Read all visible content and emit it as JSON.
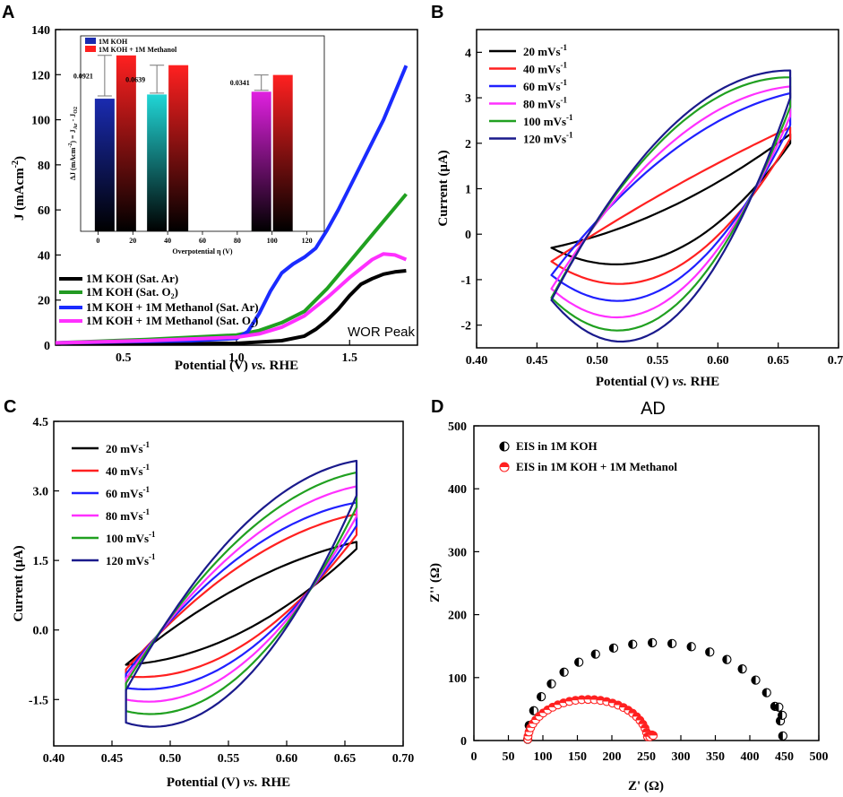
{
  "colors": {
    "black": "#000000",
    "red": "#ff2020",
    "blue": "#2020ff",
    "magenta": "#ff30ff",
    "green": "#20a020",
    "navy": "#1a1a8c",
    "ar_blue": "#1a2bff",
    "o2_green": "#239a23",
    "inset_blue": "#1a2bb0",
    "inset_red": "#ff2020",
    "inset_cyan": "#20d6d6",
    "inset_magenta": "#e020e0"
  },
  "chart_data": [
    {
      "panel": "A",
      "type": "line",
      "xlabel": "Potential (V) vs. RHE",
      "ylabel": "J (mAcm-2)",
      "xlim": [
        0.2,
        1.8
      ],
      "ylim": [
        0,
        140
      ],
      "xticks": [
        0.5,
        1.0,
        1.5
      ],
      "yticks": [
        0,
        20,
        40,
        60,
        80,
        100,
        120,
        140
      ],
      "annotation": "WOR Peak",
      "series": [
        {
          "name": "1M KOH (Sat. Ar)",
          "color": "black",
          "x": [
            0.2,
            0.6,
            1.0,
            1.2,
            1.3,
            1.35,
            1.4,
            1.45,
            1.5,
            1.55,
            1.6,
            1.65,
            1.7,
            1.75
          ],
          "y": [
            0.3,
            0.5,
            0.8,
            2.0,
            4.0,
            7.0,
            11.0,
            16.0,
            22.0,
            27.0,
            29.5,
            31.5,
            32.5,
            33.0
          ]
        },
        {
          "name": "1M KOH (Sat. O2)",
          "color": "green",
          "x": [
            0.2,
            0.6,
            1.0,
            1.1,
            1.2,
            1.3,
            1.4,
            1.5,
            1.6,
            1.7,
            1.75
          ],
          "y": [
            1.0,
            2.5,
            4.5,
            6.5,
            10.0,
            15.0,
            25.0,
            37.0,
            49.0,
            61.0,
            67.0
          ]
        },
        {
          "name": "1M KOH + 1M Methanol (Sat. Ar)",
          "color": "ar_blue",
          "x": [
            0.2,
            0.8,
            1.0,
            1.05,
            1.1,
            1.15,
            1.2,
            1.25,
            1.3,
            1.35,
            1.4,
            1.45,
            1.5,
            1.55,
            1.6,
            1.65,
            1.7,
            1.75
          ],
          "y": [
            1.0,
            2.0,
            3.0,
            6.0,
            14.0,
            24.0,
            32.0,
            36.0,
            39.0,
            43.0,
            51.0,
            60.0,
            70.0,
            80.0,
            90.0,
            100.0,
            112.0,
            124.0
          ]
        },
        {
          "name": "1M KOH + 1M Methanol (Sat. O2)",
          "color": "magenta",
          "x": [
            0.2,
            0.6,
            1.0,
            1.1,
            1.2,
            1.3,
            1.4,
            1.5,
            1.6,
            1.65,
            1.7,
            1.75
          ],
          "y": [
            1.0,
            2.0,
            3.5,
            5.0,
            8.0,
            13.0,
            21.0,
            30.0,
            38.0,
            40.5,
            40.0,
            38.0
          ]
        }
      ],
      "inset": {
        "type": "bar",
        "xlabel": "Overpotential η (V)",
        "ylabel": "ΔJ (mAcm-2) = JAr - JO2",
        "xticks": [
          0,
          20,
          40,
          60,
          80,
          100,
          120
        ],
        "legend": [
          "1M KOH",
          "1M KOH + 1M Methanol"
        ],
        "groups": [
          {
            "x": 10,
            "koh": 95,
            "methanol": 126,
            "error_top": 126,
            "error_bottom": 97,
            "label": "0.0921",
            "koh_color": "inset_blue"
          },
          {
            "x": 40,
            "koh": 98,
            "methanol": 119,
            "error_top": 119,
            "error_bottom": 99,
            "label": "0.0639",
            "koh_color": "inset_cyan"
          },
          {
            "x": 100,
            "koh": 100,
            "methanol": 112,
            "error_top": 112,
            "error_bottom": 101,
            "label": "0.0341",
            "koh_color": "inset_magenta"
          }
        ]
      }
    },
    {
      "panel": "B",
      "type": "line",
      "xlabel": "Potential (V) vs. RHE",
      "ylabel": "Current (μA)",
      "xlim": [
        0.4,
        0.7
      ],
      "ylim": [
        -2.5,
        4.5
      ],
      "xticks": [
        0.4,
        0.45,
        0.5,
        0.55,
        0.6,
        0.65,
        0.7
      ],
      "xtick_labels": [
        "0.40",
        "0.45",
        "0.50",
        "0.55",
        "0.60",
        "0.65",
        "0.70"
      ],
      "yticks": [
        -2,
        -1,
        0,
        1,
        2,
        3,
        4
      ],
      "series": [
        {
          "name": "20 mVs-1",
          "color": "black",
          "upper": [
            -0.3,
            0.6,
            2.2
          ],
          "lower": [
            -0.3,
            -0.4,
            2.0
          ]
        },
        {
          "name": "40 mVs-1",
          "color": "red",
          "upper": [
            -0.6,
            1.0,
            2.35
          ],
          "lower": [
            -0.6,
            -0.8,
            2.1
          ]
        },
        {
          "name": "60 mVs-1",
          "color": "blue",
          "upper": [
            -0.9,
            1.8,
            3.1
          ],
          "lower": [
            -0.9,
            -1.1,
            2.4
          ]
        },
        {
          "name": "80 mVs-1",
          "color": "magenta",
          "upper": [
            -1.2,
            2.0,
            3.25
          ],
          "lower": [
            -1.2,
            -1.4,
            2.6
          ]
        },
        {
          "name": "100 mVs-1",
          "color": "green",
          "upper": [
            -1.4,
            2.25,
            3.45
          ],
          "lower": [
            -1.4,
            -1.65,
            2.8
          ]
        },
        {
          "name": "120 mVs-1",
          "color": "navy",
          "upper": [
            -1.45,
            2.35,
            3.6
          ],
          "lower": [
            -1.45,
            -1.9,
            3.0
          ]
        }
      ]
    },
    {
      "panel": "C",
      "type": "line",
      "xlabel": "Potential (V) vs. RHE",
      "ylabel": "Current (μA)",
      "xlim": [
        0.4,
        0.7
      ],
      "ylim": [
        -2.5,
        4.5
      ],
      "xticks": [
        0.4,
        0.45,
        0.5,
        0.55,
        0.6,
        0.65,
        0.7
      ],
      "xtick_labels": [
        "0.40",
        "0.45",
        "0.50",
        "0.55",
        "0.60",
        "0.65",
        "0.70"
      ],
      "yticks": [
        -1.5,
        0,
        1.5,
        3,
        4.5
      ],
      "ytick_labels": [
        "-1.5",
        "0.0",
        "1.5",
        "3.0",
        "4.5"
      ],
      "series": [
        {
          "name": "20 mVs-1",
          "color": "black",
          "upper": [
            -0.75,
            0.95,
            1.9
          ],
          "lower": [
            -0.75,
            -0.05,
            1.75
          ]
        },
        {
          "name": "40 mVs-1",
          "color": "red",
          "upper": [
            -0.85,
            1.4,
            2.5
          ],
          "lower": [
            -1.0,
            -0.35,
            2.05
          ]
        },
        {
          "name": "60 mVs-1",
          "color": "blue",
          "upper": [
            -0.95,
            1.6,
            2.75
          ],
          "lower": [
            -1.25,
            -0.55,
            2.25
          ]
        },
        {
          "name": "80 mVs-1",
          "color": "magenta",
          "upper": [
            -1.05,
            1.8,
            3.1
          ],
          "lower": [
            -1.5,
            -0.75,
            2.45
          ]
        },
        {
          "name": "100 mVs-1",
          "color": "green",
          "upper": [
            -1.15,
            2.0,
            3.4
          ],
          "lower": [
            -1.75,
            -0.95,
            2.65
          ]
        },
        {
          "name": "120 mVs-1",
          "color": "navy",
          "upper": [
            -1.3,
            2.2,
            3.65
          ],
          "lower": [
            -2.0,
            -1.15,
            2.9
          ]
        }
      ]
    },
    {
      "panel": "D",
      "type": "scatter",
      "title": "AD",
      "xlabel": "Z' (Ω)",
      "ylabel": "Z'' (Ω)",
      "xlim": [
        0,
        500
      ],
      "ylim": [
        0,
        500
      ],
      "xticks": [
        0,
        50,
        100,
        150,
        200,
        250,
        300,
        350,
        400,
        450,
        500
      ],
      "yticks": [
        0,
        100,
        200,
        300,
        400,
        500
      ],
      "series": [
        {
          "name": "EIS in 1M KOH",
          "color": "black",
          "center": 263,
          "radius": 185,
          "count": 21
        },
        {
          "name": "EIS in 1M KOH + 1M Methanol",
          "color": "red",
          "center": 165,
          "radius": 87,
          "count": 30
        }
      ]
    }
  ],
  "panels": {
    "A": {
      "letter": "A",
      "xlabel_main": "Potential (V) ",
      "xlabel_italic": "vs.",
      "xlabel_end": " RHE",
      "ylabel_main": "J (mAcm",
      "ylabel_sup": "-2",
      "ylabel_end": ")",
      "xtick_labels": [
        "0.5",
        "1.0",
        "1.5"
      ],
      "ytick_labels": [
        "0",
        "20",
        "40",
        "60",
        "80",
        "100",
        "120",
        "140"
      ],
      "annotation": "WOR Peak",
      "legend": [
        {
          "text": "1M KOH (Sat. Ar)",
          "sub": ""
        },
        {
          "text": "1M KOH (Sat. O",
          "sub": "2",
          "end": ")"
        },
        {
          "text": "1M KOH + 1M Methanol (Sat. Ar)",
          "sub": ""
        },
        {
          "text": "1M KOH + 1M Methanol (Sat. O",
          "sub": "2",
          "end": ")"
        }
      ],
      "inset": {
        "legend_koh": "1M KOH",
        "legend_meth": "1M KOH + 1M Methanol",
        "xlabel": "Overpotential η (V)",
        "ylabel_main": "ΔJ (mAcm",
        "ylabel_sup": "-2",
        "ylabel_mid": ") = J",
        "ylabel_sub1": "Ar",
        "ylabel_dash": " - J",
        "ylabel_sub2": "O2",
        "xtick_labels": [
          "0",
          "20",
          "40",
          "60",
          "80",
          "100",
          "120"
        ],
        "bar_labels": [
          "0.0921",
          "0.0639",
          "0.0341"
        ]
      }
    },
    "B": {
      "letter": "B",
      "xlabel_main": "Potential (V) ",
      "xlabel_italic": "vs.",
      "xlabel_end": " RHE",
      "ylabel": "Current (μA)",
      "ytick_labels": [
        "-2",
        "-1",
        "0",
        "1",
        "2",
        "3",
        "4"
      ],
      "legend_labels": [
        "20 mVs",
        "40 mVs",
        "60 mVs",
        "80 mVs",
        "100 mVs",
        "120 mVs"
      ],
      "legend_sup": "-1"
    },
    "C": {
      "letter": "C",
      "xlabel_main": "Potential (V) ",
      "xlabel_italic": "vs.",
      "xlabel_end": " RHE",
      "ylabel": "Current (μA)",
      "legend_labels": [
        "20 mVs",
        "40 mVs",
        "60 mVs",
        "80 mVs",
        "100 mVs",
        "120 mVs"
      ],
      "legend_sup": "-1"
    },
    "D": {
      "letter": "D",
      "title": "AD",
      "xlabel": "Z' (Ω)",
      "ylabel": "Z'' (Ω)",
      "xtick_labels": [
        "0",
        "50",
        "100",
        "150",
        "200",
        "250",
        "300",
        "350",
        "400",
        "450",
        "500"
      ],
      "ytick_labels": [
        "0",
        "100",
        "200",
        "300",
        "400",
        "500"
      ],
      "legend": [
        "EIS in 1M KOH",
        "EIS in 1M KOH + 1M Methanol"
      ]
    }
  }
}
